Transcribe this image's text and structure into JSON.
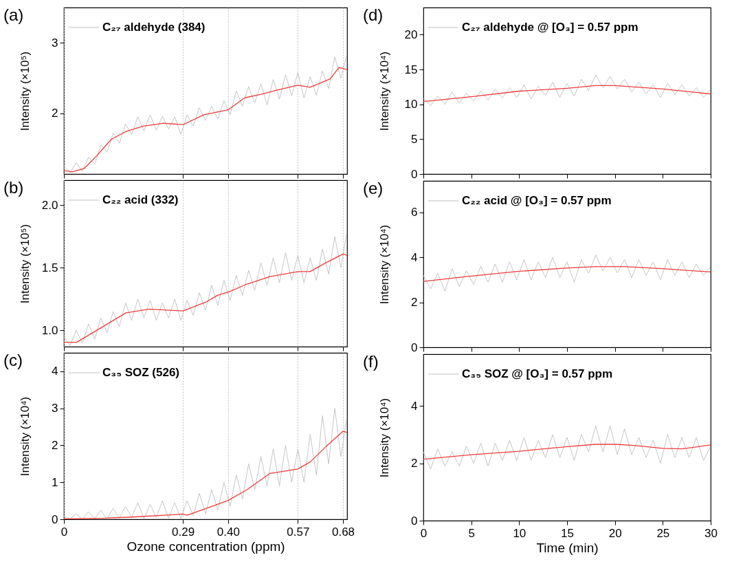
{
  "chart_data": [
    {
      "type": "line",
      "title": "(a)",
      "ylabel": "Intensity (×10⁵)",
      "xlim": [
        0,
        0.69
      ],
      "xticks": [
        0,
        0.29,
        0.4,
        0.57,
        0.68
      ],
      "ylim": [
        1.14,
        3.5
      ],
      "yticks": [
        2,
        3
      ],
      "grid": "x",
      "legend": "top left",
      "tick_labels": "y",
      "series": [
        {
          "name": "C₂₇ aldehyde (384)",
          "color": "#c0c0c0",
          "x": [
            0,
            0.015,
            0.03,
            0.045,
            0.06,
            0.075,
            0.09,
            0.105,
            0.12,
            0.135,
            0.15,
            0.165,
            0.18,
            0.195,
            0.21,
            0.225,
            0.24,
            0.255,
            0.27,
            0.285,
            0.3,
            0.315,
            0.33,
            0.345,
            0.36,
            0.375,
            0.39,
            0.405,
            0.42,
            0.435,
            0.45,
            0.465,
            0.48,
            0.495,
            0.51,
            0.525,
            0.54,
            0.555,
            0.57,
            0.585,
            0.6,
            0.615,
            0.63,
            0.645,
            0.66,
            0.675,
            0.69
          ],
          "values": [
            1.25,
            1.16,
            1.3,
            1.18,
            1.38,
            1.28,
            1.55,
            1.45,
            1.72,
            1.58,
            1.85,
            1.7,
            1.95,
            1.75,
            1.98,
            1.76,
            1.96,
            1.78,
            1.95,
            1.7,
            1.98,
            1.82,
            2.08,
            1.9,
            2.1,
            1.92,
            2.18,
            1.98,
            2.32,
            2.1,
            2.38,
            2.15,
            2.42,
            2.12,
            2.48,
            2.2,
            2.55,
            2.25,
            2.58,
            2.22,
            2.52,
            2.26,
            2.6,
            2.35,
            2.8,
            2.5,
            2.85
          ]
        },
        {
          "type": "line",
          "color": "#ee3b3b",
          "x": [
            0,
            0.02,
            0.05,
            0.08,
            0.115,
            0.15,
            0.193,
            0.243,
            0.29,
            0.341,
            0.4,
            0.44,
            0.48,
            0.52,
            0.57,
            0.6,
            0.649,
            0.67,
            0.69
          ],
          "values": [
            1.19,
            1.17,
            1.22,
            1.4,
            1.63,
            1.74,
            1.82,
            1.86,
            1.84,
            1.98,
            2.05,
            2.22,
            2.27,
            2.33,
            2.4,
            2.37,
            2.49,
            2.65,
            2.62
          ]
        }
      ]
    },
    {
      "type": "line",
      "title": "(b)",
      "ylabel": "Intensity (×10⁵)",
      "xlim": [
        0,
        0.69
      ],
      "xticks": [
        0,
        0.29,
        0.4,
        0.57,
        0.68
      ],
      "ylim": [
        0.87,
        2.2
      ],
      "yticks": [
        {
          "value": 1,
          "label": "1.0"
        },
        1.5,
        {
          "value": 2,
          "label": "2.0"
        }
      ],
      "grid": "x",
      "legend": "top left",
      "tick_labels": "y",
      "series": [
        {
          "name": "C₂₂ acid (332)",
          "color": "#c0c0c0",
          "x": [
            0,
            0.015,
            0.03,
            0.045,
            0.06,
            0.075,
            0.09,
            0.105,
            0.12,
            0.135,
            0.15,
            0.165,
            0.18,
            0.195,
            0.21,
            0.225,
            0.24,
            0.255,
            0.27,
            0.285,
            0.3,
            0.315,
            0.33,
            0.345,
            0.36,
            0.375,
            0.39,
            0.405,
            0.42,
            0.435,
            0.45,
            0.465,
            0.48,
            0.495,
            0.51,
            0.525,
            0.54,
            0.555,
            0.57,
            0.585,
            0.6,
            0.615,
            0.63,
            0.645,
            0.66,
            0.675,
            0.69
          ],
          "values": [
            0.95,
            0.88,
            1.0,
            0.9,
            1.05,
            0.93,
            1.1,
            0.98,
            1.15,
            1.03,
            1.22,
            1.08,
            1.25,
            1.1,
            1.24,
            1.08,
            1.22,
            1.1,
            1.25,
            1.08,
            1.24,
            1.12,
            1.3,
            1.16,
            1.36,
            1.2,
            1.4,
            1.24,
            1.44,
            1.28,
            1.48,
            1.32,
            1.54,
            1.36,
            1.58,
            1.38,
            1.62,
            1.4,
            1.6,
            1.38,
            1.58,
            1.4,
            1.65,
            1.45,
            1.75,
            1.5,
            1.8
          ]
        },
        {
          "type": "line",
          "color": "#ee3b3b",
          "x": [
            0,
            0.031,
            0.095,
            0.151,
            0.208,
            0.29,
            0.346,
            0.374,
            0.393,
            0.4,
            0.446,
            0.502,
            0.57,
            0.6,
            0.638,
            0.68,
            0.69
          ],
          "values": [
            0.905,
            0.905,
            1.03,
            1.14,
            1.17,
            1.155,
            1.226,
            1.28,
            1.3,
            1.305,
            1.37,
            1.43,
            1.47,
            1.47,
            1.54,
            1.61,
            1.6
          ]
        }
      ]
    },
    {
      "type": "line",
      "title": "(c)",
      "xlabel": "Ozone concentration (ppm)",
      "ylabel": "Intensity (×10⁴)",
      "xlim": [
        0,
        0.69
      ],
      "xticks": [
        0,
        0.29,
        {
          "value": 0.4,
          "label": "0.40"
        },
        0.57,
        0.68
      ],
      "ylim": [
        0,
        4.5
      ],
      "yticks": [
        0,
        1,
        2,
        3,
        4
      ],
      "grid": "x",
      "legend": "top left",
      "series": [
        {
          "name": "C₃₅ SOZ (526)",
          "color": "#c0c0c0",
          "x": [
            0,
            0.015,
            0.03,
            0.045,
            0.06,
            0.075,
            0.09,
            0.105,
            0.12,
            0.135,
            0.15,
            0.165,
            0.18,
            0.195,
            0.21,
            0.225,
            0.24,
            0.255,
            0.27,
            0.285,
            0.3,
            0.315,
            0.33,
            0.345,
            0.36,
            0.375,
            0.39,
            0.405,
            0.42,
            0.435,
            0.45,
            0.465,
            0.48,
            0.495,
            0.51,
            0.525,
            0.54,
            0.555,
            0.57,
            0.585,
            0.6,
            0.615,
            0.63,
            0.645,
            0.66,
            0.675,
            0.69
          ],
          "values": [
            0.1,
            0,
            0.15,
            0,
            0.2,
            0.02,
            0.25,
            0,
            0.3,
            0.02,
            0.35,
            0.05,
            0.45,
            0.02,
            0.4,
            0.05,
            0.5,
            0.03,
            0.45,
            0.02,
            0.5,
            0.1,
            0.7,
            0.15,
            0.8,
            0.25,
            1.0,
            0.35,
            1.2,
            0.55,
            1.5,
            0.8,
            1.7,
            0.9,
            1.9,
            0.9,
            2.0,
            1.0,
            1.9,
            1.0,
            2.3,
            1.2,
            2.8,
            1.5,
            3.0,
            1.7,
            2.8
          ]
        },
        {
          "type": "line",
          "color": "#ee3b3b",
          "x": [
            0,
            0.1,
            0.165,
            0.29,
            0.3,
            0.346,
            0.4,
            0.446,
            0.502,
            0.57,
            0.6,
            0.638,
            0.68,
            0.69
          ],
          "values": [
            0.01,
            0.03,
            0.06,
            0.14,
            0.11,
            0.29,
            0.51,
            0.8,
            1.24,
            1.36,
            1.55,
            1.96,
            2.38,
            2.35
          ]
        }
      ]
    },
    {
      "type": "line",
      "title": "(d)",
      "ylabel": "Intensity (×10⁴)",
      "xlim": [
        0,
        30
      ],
      "xticks": [
        0,
        5,
        10,
        15,
        20,
        25,
        30
      ],
      "ylim": [
        0,
        23.9
      ],
      "yticks": [
        0,
        5,
        10,
        15,
        20
      ],
      "legend": "top left",
      "tick_labels": "y",
      "series": [
        {
          "name": "C₂₇ aldehyde @ [O₃] = 0.57 ppm",
          "color": "#c0c0c0",
          "x": [
            0,
            0.75,
            1.5,
            2.25,
            3,
            3.75,
            4.5,
            5.25,
            6,
            6.75,
            7.5,
            8.25,
            9,
            9.75,
            10.5,
            11.25,
            12,
            12.75,
            13.5,
            14.25,
            15,
            15.75,
            16.5,
            17.25,
            18,
            18.75,
            19.5,
            20.25,
            21,
            21.75,
            22.5,
            23.25,
            24,
            24.75,
            25.5,
            26.25,
            27,
            27.75,
            28.5,
            29.25,
            30
          ],
          "values": [
            10.9,
            9.8,
            11.2,
            10.0,
            11.8,
            10.2,
            11.6,
            10.5,
            11.9,
            10.6,
            12.2,
            10.9,
            12.4,
            11.0,
            12.8,
            10.8,
            12.6,
            11.3,
            13.2,
            11.0,
            13.0,
            11.2,
            13.6,
            12.0,
            14.2,
            12.4,
            14.0,
            12.2,
            13.6,
            11.8,
            13.2,
            11.5,
            12.8,
            11.0,
            13.0,
            11.4,
            12.8,
            11.2,
            12.4,
            11.0,
            12.2
          ]
        },
        {
          "type": "line",
          "color": "#ee3b3b",
          "x": [
            0,
            5,
            10,
            15,
            18,
            20,
            25,
            30
          ],
          "values": [
            10.4,
            11.1,
            11.9,
            12.3,
            12.7,
            12.7,
            12.2,
            11.5
          ]
        }
      ]
    },
    {
      "type": "line",
      "title": "(e)",
      "ylabel": "Intensity (×10⁴)",
      "xlim": [
        0,
        30
      ],
      "xticks": [
        0,
        5,
        10,
        15,
        20,
        25,
        30
      ],
      "ylim": [
        0,
        7.4
      ],
      "yticks": [
        0,
        2,
        4,
        6
      ],
      "legend": "top left",
      "tick_labels": "y",
      "series": [
        {
          "name": "C₂₂ acid @ [O₃] = 0.57 ppm",
          "color": "#c0c0c0",
          "x": [
            0,
            0.75,
            1.5,
            2.25,
            3,
            3.75,
            4.5,
            5.25,
            6,
            6.75,
            7.5,
            8.25,
            9,
            9.75,
            10.5,
            11.25,
            12,
            12.75,
            13.5,
            14.25,
            15,
            15.75,
            16.5,
            17.25,
            18,
            18.75,
            19.5,
            20.25,
            21,
            21.75,
            22.5,
            23.25,
            24,
            24.75,
            25.5,
            26.25,
            27,
            27.75,
            28.5,
            29.25,
            30
          ],
          "values": [
            3.2,
            2.6,
            3.3,
            2.5,
            3.5,
            2.7,
            3.4,
            2.8,
            3.6,
            2.9,
            3.7,
            2.9,
            3.8,
            3.0,
            3.9,
            3.0,
            3.8,
            3.1,
            4.0,
            3.1,
            3.8,
            2.9,
            3.9,
            3.3,
            4.1,
            3.4,
            4.0,
            3.3,
            3.9,
            3.1,
            3.9,
            3.2,
            3.8,
            3.0,
            3.9,
            3.2,
            3.8,
            3.1,
            3.7,
            3.2,
            3.6
          ]
        },
        {
          "type": "line",
          "color": "#ee3b3b",
          "x": [
            0,
            5,
            10,
            15,
            18,
            21,
            25,
            30
          ],
          "values": [
            2.93,
            3.17,
            3.38,
            3.53,
            3.59,
            3.59,
            3.5,
            3.35
          ]
        }
      ]
    },
    {
      "type": "line",
      "title": "(f)",
      "xlabel": "Time (min)",
      "ylabel": "Intensity (×10⁴)",
      "xlim": [
        0,
        30
      ],
      "xticks": [
        0,
        5,
        10,
        15,
        20,
        25,
        30
      ],
      "ylim": [
        0,
        5.8
      ],
      "yticks": [
        0,
        2,
        4
      ],
      "legend": "top left",
      "series": [
        {
          "name": "C₃₅ SOZ @ [O₃] = 0.57 ppm",
          "color": "#c0c0c0",
          "x": [
            0,
            0.75,
            1.5,
            2.25,
            3,
            3.75,
            4.5,
            5.25,
            6,
            6.75,
            7.5,
            8.25,
            9,
            9.75,
            10.5,
            11.25,
            12,
            12.75,
            13.5,
            14.25,
            15,
            15.75,
            16.5,
            17.25,
            18,
            18.75,
            19.5,
            20.25,
            21,
            21.75,
            22.5,
            23.25,
            24,
            24.75,
            25.5,
            26.25,
            27,
            27.75,
            28.5,
            29.25,
            30
          ],
          "values": [
            2.4,
            1.8,
            2.5,
            1.9,
            2.4,
            1.9,
            2.6,
            2.0,
            2.7,
            1.9,
            2.7,
            2.1,
            2.8,
            2.1,
            2.9,
            2.1,
            2.8,
            2.2,
            3.0,
            2.2,
            2.9,
            2.1,
            3.0,
            2.4,
            3.3,
            2.4,
            3.3,
            2.3,
            3.2,
            2.3,
            2.9,
            2.2,
            2.8,
            2.0,
            3.0,
            2.2,
            2.9,
            2.2,
            2.9,
            2.1,
            2.6
          ]
        },
        {
          "type": "line",
          "color": "#ee3b3b",
          "x": [
            0,
            5,
            10,
            15,
            18,
            20,
            22,
            25,
            27,
            30
          ],
          "values": [
            2.14,
            2.3,
            2.42,
            2.58,
            2.66,
            2.66,
            2.62,
            2.52,
            2.5,
            2.64
          ]
        }
      ]
    }
  ]
}
